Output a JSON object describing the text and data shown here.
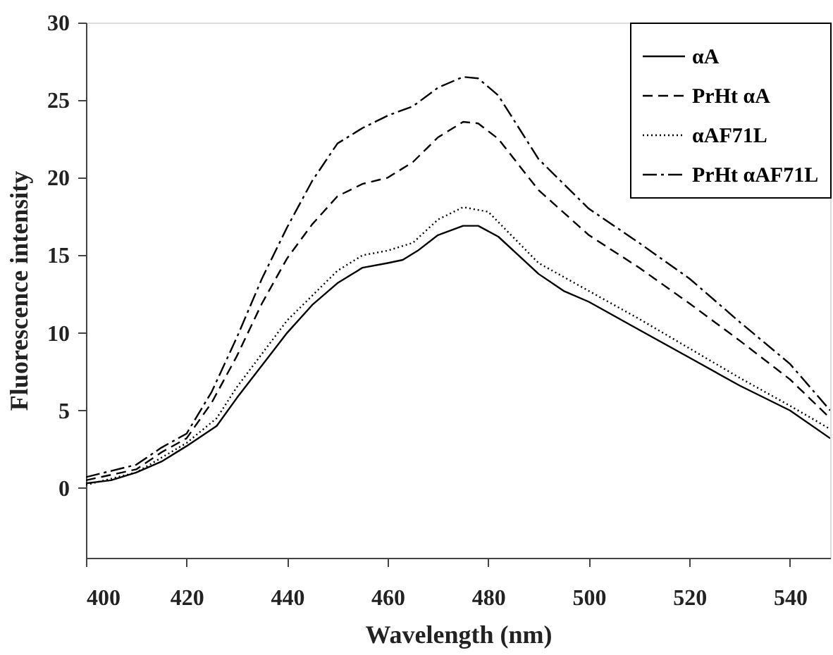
{
  "chart_data": {
    "type": "line",
    "xlabel": "Wavelength (nm)",
    "ylabel": "Fluorescence intensity",
    "xlim": [
      400,
      548
    ],
    "xticks": [
      400,
      420,
      440,
      460,
      480,
      500,
      520,
      540
    ],
    "ylim": [
      -4.5,
      30
    ],
    "yticks": [
      0,
      5,
      10,
      15,
      20,
      25,
      30
    ],
    "grid": false,
    "legend": "top right",
    "marker": "none",
    "series": [
      {
        "name": "αA",
        "color": "#000000",
        "line_style": "solid",
        "x": [
          400,
          405,
          410,
          415,
          420,
          426,
          430,
          435,
          440,
          445,
          450,
          452,
          455,
          460,
          463,
          466,
          470,
          475,
          478,
          482,
          486,
          490,
          495,
          500,
          510,
          520,
          530,
          540,
          548
        ],
        "values": [
          0.3,
          0.5,
          1.0,
          1.7,
          2.7,
          4.0,
          5.8,
          7.9,
          10.0,
          11.8,
          13.2,
          13.6,
          14.2,
          14.5,
          14.7,
          15.3,
          16.3,
          16.9,
          16.9,
          16.2,
          15.0,
          13.8,
          12.7,
          12.0,
          10.2,
          8.4,
          6.6,
          5.0,
          3.2
        ]
      },
      {
        "name": "PrHt αA",
        "color": "#000000",
        "line_style": "dashed",
        "x": [
          400,
          410,
          415,
          420,
          425,
          430,
          435,
          440,
          445,
          450,
          455,
          460,
          465,
          470,
          475,
          478,
          482,
          490,
          500,
          510,
          520,
          530,
          540,
          548
        ],
        "values": [
          0.5,
          1.2,
          2.3,
          3.2,
          5.5,
          8.5,
          11.9,
          14.8,
          17.0,
          18.8,
          19.6,
          20.0,
          21.0,
          22.6,
          23.6,
          23.5,
          22.5,
          19.2,
          16.3,
          14.2,
          11.9,
          9.5,
          7.0,
          4.5
        ]
      },
      {
        "name": "αAF71L",
        "color": "#000000",
        "line_style": "dotted",
        "x": [
          400,
          410,
          420,
          426,
          430,
          440,
          450,
          455,
          460,
          465,
          470,
          475,
          480,
          490,
          500,
          510,
          520,
          530,
          540,
          548
        ],
        "values": [
          0.2,
          1.0,
          2.9,
          4.5,
          6.5,
          10.8,
          14.0,
          15.0,
          15.3,
          15.8,
          17.3,
          18.1,
          17.8,
          14.5,
          12.7,
          10.9,
          9.0,
          7.1,
          5.3,
          3.8
        ]
      },
      {
        "name": "PrHt αAF71L",
        "color": "#000000",
        "line_style": "dashdot",
        "x": [
          400,
          410,
          415,
          420,
          425,
          430,
          435,
          440,
          445,
          450,
          455,
          460,
          465,
          470,
          475,
          478,
          482,
          490,
          500,
          510,
          520,
          530,
          540,
          548
        ],
        "values": [
          0.7,
          1.5,
          2.6,
          3.5,
          6.2,
          9.7,
          13.5,
          16.8,
          19.8,
          22.2,
          23.2,
          24.0,
          24.6,
          25.8,
          26.5,
          26.4,
          25.3,
          21.2,
          18.0,
          15.8,
          13.5,
          10.7,
          8.0,
          5.0
        ]
      }
    ]
  }
}
